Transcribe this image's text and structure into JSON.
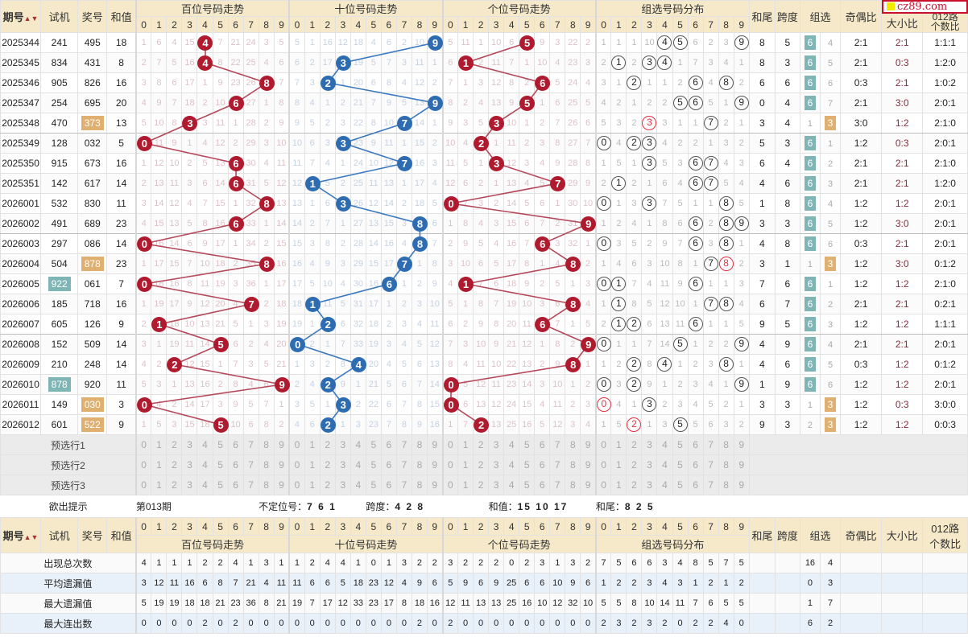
{
  "logo": "cz89.com",
  "headers": {
    "issue": "期号",
    "trial": "试机",
    "prize": "奖号",
    "sum": "和值",
    "hundreds": "百位号码走势",
    "tens": "十位号码走势",
    "units": "个位号码走势",
    "group": "组选号码分布",
    "tail": "和尾",
    "span": "跨度",
    "zuxuan": "组选",
    "oe": "奇偶比",
    "bs": "大小比",
    "r012a": "012路",
    "r012b": "个数比",
    "digits": [
      "0",
      "1",
      "2",
      "3",
      "4",
      "5",
      "6",
      "7",
      "8",
      "9"
    ]
  },
  "rows": [
    {
      "issue": "2025344",
      "trial": "241",
      "prize": "495",
      "sum": "18",
      "h": [
        1,
        6,
        4,
        15,
        4,
        7,
        21,
        24,
        3,
        5
      ],
      "t": [
        5,
        1,
        16,
        12,
        18,
        4,
        6,
        2,
        10,
        9
      ],
      "u": [
        5,
        11,
        1,
        10,
        6,
        5,
        9,
        3,
        22,
        2
      ],
      "g": [
        1,
        1,
        1,
        10,
        4,
        5,
        6,
        2,
        3,
        9
      ],
      "tail": "8",
      "span": "5",
      "type": "6",
      "z6": "6",
      "z3": "4",
      "oe": "2:1",
      "bs": "2:1",
      "r012": "1:1:1"
    },
    {
      "issue": "2025345",
      "trial": "834",
      "prize": "431",
      "sum": "8",
      "h": [
        2,
        7,
        5,
        16,
        4,
        8,
        22,
        25,
        4,
        6
      ],
      "t": [
        6,
        2,
        17,
        3,
        19,
        5,
        7,
        3,
        11,
        1
      ],
      "u": [
        6,
        1,
        2,
        11,
        7,
        1,
        10,
        4,
        23,
        3
      ],
      "g": [
        2,
        1,
        2,
        3,
        4,
        1,
        7,
        3,
        4,
        1
      ],
      "tail": "8",
      "span": "3",
      "type": "6",
      "z6": "6",
      "z3": "5",
      "oe": "2:1",
      "bs": "0:3",
      "r012": "1:2:0"
    },
    {
      "issue": "2025346",
      "trial": "905",
      "prize": "826",
      "sum": "16",
      "h": [
        3,
        8,
        6,
        17,
        1,
        9,
        23,
        26,
        8,
        7
      ],
      "t": [
        7,
        3,
        2,
        1,
        20,
        6,
        8,
        4,
        12,
        2
      ],
      "u": [
        7,
        1,
        3,
        12,
        8,
        2,
        6,
        5,
        24,
        4
      ],
      "g": [
        3,
        1,
        2,
        1,
        1,
        2,
        6,
        4,
        8,
        2
      ],
      "tail": "6",
      "span": "6",
      "type": "6",
      "z6": "6",
      "z3": "6",
      "oe": "0:3",
      "bs": "2:1",
      "r012": "1:0:2"
    },
    {
      "issue": "2025347",
      "trial": "254",
      "prize": "695",
      "sum": "20",
      "h": [
        4,
        9,
        7,
        18,
        2,
        10,
        6,
        27,
        1,
        8
      ],
      "t": [
        8,
        4,
        1,
        2,
        21,
        7,
        9,
        5,
        13,
        9
      ],
      "u": [
        8,
        2,
        4,
        13,
        9,
        5,
        1,
        6,
        25,
        5
      ],
      "g": [
        4,
        2,
        1,
        2,
        2,
        5,
        6,
        5,
        1,
        9
      ],
      "tail": "0",
      "span": "4",
      "type": "6",
      "z6": "6",
      "z3": "7",
      "oe": "2:1",
      "bs": "3:0",
      "r012": "2:0:1"
    },
    {
      "issue": "2025348",
      "trial": "470",
      "prize": "373",
      "prize_hl": true,
      "sum": "13",
      "h": [
        5,
        10,
        8,
        3,
        3,
        11,
        1,
        28,
        2,
        9
      ],
      "t": [
        9,
        5,
        2,
        3,
        22,
        8,
        10,
        7,
        14,
        1
      ],
      "u": [
        9,
        3,
        5,
        3,
        10,
        1,
        2,
        7,
        26,
        6
      ],
      "g": [
        5,
        3,
        2,
        3,
        3,
        1,
        1,
        7,
        2,
        1
      ],
      "tail": "3",
      "span": "4",
      "type": "3",
      "z6": "1",
      "z3": "3",
      "oe": "3:0",
      "bs": "1:2",
      "r012": "2:1:0"
    },
    {
      "issue": "2025349",
      "trial": "128",
      "prize": "032",
      "sum": "5",
      "h": [
        0,
        11,
        9,
        1,
        4,
        12,
        2,
        29,
        3,
        10
      ],
      "t": [
        10,
        6,
        3,
        3,
        23,
        9,
        11,
        1,
        15,
        2
      ],
      "u": [
        10,
        4,
        2,
        1,
        11,
        2,
        3,
        8,
        27,
        7
      ],
      "g": [
        0,
        4,
        2,
        3,
        4,
        2,
        2,
        1,
        3,
        2
      ],
      "tail": "5",
      "span": "3",
      "type": "6",
      "z6": "6",
      "z3": "1",
      "oe": "1:2",
      "bs": "0:3",
      "r012": "2:0:1"
    },
    {
      "issue": "2025350",
      "trial": "915",
      "prize": "673",
      "sum": "16",
      "h": [
        1,
        12,
        10,
        2,
        5,
        13,
        6,
        30,
        4,
        11
      ],
      "t": [
        11,
        7,
        4,
        1,
        24,
        10,
        12,
        7,
        16,
        3
      ],
      "u": [
        11,
        5,
        1,
        3,
        12,
        3,
        4,
        9,
        28,
        8
      ],
      "g": [
        1,
        5,
        1,
        3,
        5,
        3,
        6,
        7,
        4,
        3
      ],
      "tail": "6",
      "span": "4",
      "type": "6",
      "z6": "6",
      "z3": "2",
      "oe": "2:1",
      "bs": "2:1",
      "r012": "2:1:0"
    },
    {
      "issue": "2025351",
      "trial": "142",
      "prize": "617",
      "sum": "14",
      "h": [
        2,
        13,
        11,
        3,
        6,
        14,
        6,
        31,
        5,
        12
      ],
      "t": [
        12,
        1,
        5,
        2,
        25,
        11,
        13,
        1,
        17,
        4
      ],
      "u": [
        12,
        6,
        2,
        1,
        13,
        4,
        5,
        7,
        29,
        9
      ],
      "g": [
        2,
        1,
        2,
        1,
        6,
        4,
        6,
        7,
        5,
        4
      ],
      "tail": "4",
      "span": "6",
      "type": "6",
      "z6": "6",
      "z3": "3",
      "oe": "2:1",
      "bs": "2:1",
      "r012": "1:2:0"
    },
    {
      "issue": "2026001",
      "trial": "532",
      "prize": "830",
      "sum": "11",
      "h": [
        3,
        14,
        12,
        4,
        7,
        15,
        1,
        32,
        8,
        13
      ],
      "t": [
        13,
        1,
        6,
        3,
        26,
        12,
        14,
        2,
        18,
        5
      ],
      "u": [
        0,
        7,
        3,
        2,
        14,
        5,
        6,
        1,
        30,
        10
      ],
      "g": [
        0,
        1,
        3,
        3,
        7,
        5,
        1,
        1,
        8,
        5
      ],
      "tail": "1",
      "span": "8",
      "type": "6",
      "z6": "6",
      "z3": "4",
      "oe": "1:2",
      "bs": "1:2",
      "r012": "2:0:1"
    },
    {
      "issue": "2026002",
      "trial": "491",
      "prize": "689",
      "sum": "23",
      "h": [
        4,
        15,
        13,
        5,
        8,
        16,
        6,
        33,
        1,
        14
      ],
      "t": [
        14,
        2,
        7,
        1,
        27,
        13,
        15,
        3,
        8,
        6
      ],
      "u": [
        1,
        8,
        4,
        3,
        15,
        6,
        7,
        2,
        31,
        9
      ],
      "g": [
        1,
        2,
        4,
        1,
        8,
        6,
        6,
        2,
        8,
        9
      ],
      "tail": "3",
      "span": "3",
      "type": "6",
      "z6": "6",
      "z3": "5",
      "oe": "1:2",
      "bs": "3:0",
      "r012": "2:0:1"
    },
    {
      "issue": "2026003",
      "trial": "297",
      "prize": "086",
      "sum": "14",
      "h": [
        0,
        16,
        14,
        6,
        9,
        17,
        1,
        34,
        2,
        15
      ],
      "t": [
        15,
        3,
        8,
        2,
        28,
        14,
        16,
        4,
        8,
        7
      ],
      "u": [
        2,
        9,
        5,
        4,
        16,
        7,
        6,
        3,
        32,
        1
      ],
      "g": [
        0,
        3,
        5,
        2,
        9,
        7,
        6,
        3,
        8,
        1
      ],
      "tail": "4",
      "span": "8",
      "type": "6",
      "z6": "6",
      "z3": "6",
      "oe": "0:3",
      "bs": "2:1",
      "r012": "2:0:1"
    },
    {
      "issue": "2026004",
      "trial": "504",
      "prize": "878",
      "prize_hl": true,
      "sum": "23",
      "h": [
        1,
        17,
        15,
        7,
        10,
        18,
        2,
        35,
        8,
        16
      ],
      "t": [
        16,
        4,
        9,
        3,
        29,
        15,
        17,
        7,
        1,
        8
      ],
      "u": [
        3,
        10,
        6,
        5,
        17,
        8,
        1,
        4,
        8,
        2
      ],
      "g": [
        1,
        4,
        6,
        3,
        10,
        8,
        1,
        7,
        8,
        2
      ],
      "tail": "3",
      "span": "1",
      "type": "3",
      "z6": "1",
      "z3": "3",
      "oe": "1:2",
      "bs": "3:0",
      "r012": "0:1:2"
    },
    {
      "issue": "2026005",
      "trial": "922",
      "trial_hl": true,
      "prize": "061",
      "sum": "7",
      "h": [
        0,
        18,
        16,
        8,
        11,
        19,
        3,
        36,
        1,
        17
      ],
      "t": [
        17,
        5,
        10,
        4,
        30,
        16,
        6,
        1,
        2,
        9
      ],
      "u": [
        4,
        1,
        7,
        6,
        18,
        9,
        2,
        5,
        1,
        3
      ],
      "g": [
        0,
        1,
        7,
        4,
        11,
        9,
        6,
        1,
        1,
        3
      ],
      "tail": "7",
      "span": "6",
      "type": "6",
      "z6": "6",
      "z3": "1",
      "oe": "1:2",
      "bs": "1:2",
      "r012": "2:1:0"
    },
    {
      "issue": "2026006",
      "trial": "185",
      "prize": "718",
      "sum": "16",
      "h": [
        1,
        19,
        17,
        9,
        12,
        20,
        4,
        7,
        2,
        18
      ],
      "t": [
        18,
        1,
        11,
        5,
        31,
        17,
        1,
        2,
        3,
        10
      ],
      "u": [
        5,
        1,
        8,
        7,
        19,
        10,
        3,
        6,
        8,
        4
      ],
      "g": [
        1,
        1,
        8,
        5,
        12,
        10,
        1,
        7,
        8,
        4
      ],
      "tail": "6",
      "span": "7",
      "type": "6",
      "z6": "6",
      "z3": "2",
      "oe": "2:1",
      "bs": "2:1",
      "r012": "0:2:1"
    },
    {
      "issue": "2026007",
      "trial": "605",
      "prize": "126",
      "sum": "9",
      "h": [
        2,
        1,
        18,
        10,
        13,
        21,
        5,
        1,
        3,
        19
      ],
      "t": [
        19,
        1,
        2,
        6,
        32,
        18,
        2,
        3,
        4,
        11
      ],
      "u": [
        6,
        2,
        9,
        8,
        20,
        11,
        6,
        7,
        1,
        5
      ],
      "g": [
        2,
        1,
        2,
        6,
        13,
        11,
        6,
        1,
        1,
        5
      ],
      "tail": "9",
      "span": "5",
      "type": "6",
      "z6": "6",
      "z3": "3",
      "oe": "1:2",
      "bs": "1:2",
      "r012": "1:1:1"
    },
    {
      "issue": "2026008",
      "trial": "152",
      "prize": "509",
      "sum": "14",
      "h": [
        3,
        1,
        19,
        11,
        14,
        5,
        6,
        2,
        4,
        20
      ],
      "t": [
        0,
        2,
        1,
        7,
        33,
        19,
        3,
        4,
        5,
        12
      ],
      "u": [
        7,
        3,
        10,
        9,
        21,
        12,
        1,
        8,
        2,
        9
      ],
      "g": [
        0,
        1,
        1,
        7,
        14,
        5,
        1,
        2,
        2,
        9
      ],
      "tail": "4",
      "span": "9",
      "type": "6",
      "z6": "6",
      "z3": "4",
      "oe": "2:1",
      "bs": "2:1",
      "r012": "2:0:1"
    },
    {
      "issue": "2026009",
      "trial": "210",
      "prize": "248",
      "sum": "14",
      "h": [
        4,
        2,
        2,
        12,
        15,
        1,
        7,
        3,
        5,
        21
      ],
      "t": [
        1,
        3,
        2,
        8,
        4,
        20,
        4,
        5,
        6,
        13
      ],
      "u": [
        8,
        4,
        11,
        10,
        22,
        13,
        2,
        9,
        8,
        1
      ],
      "g": [
        1,
        2,
        2,
        8,
        4,
        1,
        2,
        3,
        8,
        1
      ],
      "tail": "4",
      "span": "6",
      "type": "6",
      "z6": "6",
      "z3": "5",
      "oe": "0:3",
      "bs": "1:2",
      "r012": "0:1:2"
    },
    {
      "issue": "2026010",
      "trial": "878",
      "trial_hl": true,
      "prize": "920",
      "sum": "11",
      "h": [
        5,
        3,
        1,
        13,
        16,
        2,
        8,
        4,
        6,
        9
      ],
      "t": [
        2,
        4,
        2,
        9,
        1,
        21,
        5,
        6,
        7,
        14
      ],
      "u": [
        0,
        5,
        12,
        11,
        23,
        14,
        3,
        10,
        1,
        2
      ],
      "g": [
        0,
        3,
        2,
        9,
        1,
        2,
        3,
        4,
        1,
        9
      ],
      "tail": "1",
      "span": "9",
      "type": "6",
      "z6": "6",
      "z3": "6",
      "oe": "1:2",
      "bs": "1:2",
      "r012": "2:0:1"
    },
    {
      "issue": "2026011",
      "trial": "149",
      "prize": "030",
      "prize_hl": true,
      "sum": "3",
      "h": [
        0,
        4,
        2,
        14,
        17,
        3,
        9,
        5,
        7,
        1
      ],
      "t": [
        3,
        5,
        1,
        3,
        2,
        22,
        6,
        7,
        8,
        15
      ],
      "u": [
        0,
        6,
        13,
        12,
        24,
        15,
        4,
        11,
        2,
        3
      ],
      "g": [
        0,
        4,
        1,
        3,
        2,
        3,
        4,
        5,
        2,
        1
      ],
      "tail": "3",
      "span": "3",
      "type": "3",
      "z6": "1",
      "z3": "3",
      "oe": "1:2",
      "bs": "0:3",
      "r012": "3:0:0"
    },
    {
      "issue": "2026012",
      "trial": "601",
      "prize": "522",
      "prize_hl": true,
      "sum": "9",
      "h": [
        1,
        5,
        3,
        15,
        18,
        5,
        10,
        6,
        8,
        2
      ],
      "t": [
        4,
        6,
        2,
        1,
        3,
        23,
        7,
        8,
        9,
        16
      ],
      "u": [
        1,
        7,
        2,
        13,
        25,
        16,
        5,
        12,
        3,
        4
      ],
      "g": [
        1,
        5,
        2,
        1,
        3,
        5,
        5,
        6,
        3,
        2
      ],
      "tail": "9",
      "span": "3",
      "type": "3",
      "z6": "2",
      "z3": "3",
      "oe": "1:2",
      "bs": "1:2",
      "r012": "0:0:3"
    }
  ],
  "preselect": [
    "预选行1",
    "预选行2",
    "预选行3"
  ],
  "hint": {
    "label": "欲出提示",
    "period": "第013期",
    "unfixed_label": "不定位号：",
    "unfixed": "7 6 1",
    "span_label": "跨度：",
    "span": "4 2 8",
    "sum_label": "和值：",
    "sum": "15 10 17",
    "tail_label": "和尾：",
    "tail": "8 2 5"
  },
  "stats": [
    {
      "label": "出现总次数",
      "h": [
        4,
        1,
        1,
        1,
        2,
        2,
        4,
        1,
        3,
        1
      ],
      "t": [
        1,
        2,
        4,
        4,
        1,
        0,
        1,
        3,
        2,
        2
      ],
      "u": [
        3,
        2,
        2,
        2,
        0,
        2,
        3,
        1,
        3,
        2
      ],
      "g": [
        7,
        5,
        6,
        6,
        3,
        4,
        8,
        5,
        7,
        5
      ],
      "z": [
        "16",
        "4"
      ]
    },
    {
      "label": "平均遗漏值",
      "h": [
        3,
        12,
        11,
        16,
        6,
        8,
        7,
        21,
        4,
        11
      ],
      "t": [
        11,
        6,
        6,
        5,
        18,
        23,
        12,
        4,
        9,
        6
      ],
      "u": [
        5,
        9,
        6,
        9,
        25,
        6,
        6,
        10,
        9,
        6
      ],
      "g": [
        1,
        2,
        2,
        3,
        4,
        3,
        1,
        2,
        1,
        2
      ],
      "z": [
        "0",
        "3"
      ]
    },
    {
      "label": "最大遗漏值",
      "h": [
        5,
        19,
        19,
        18,
        18,
        21,
        23,
        36,
        8,
        21
      ],
      "t": [
        19,
        7,
        17,
        12,
        33,
        23,
        17,
        8,
        18,
        16
      ],
      "u": [
        12,
        11,
        13,
        13,
        25,
        16,
        10,
        12,
        32,
        10
      ],
      "g": [
        5,
        5,
        8,
        10,
        14,
        11,
        7,
        6,
        5,
        5
      ],
      "z": [
        "1",
        "7"
      ]
    },
    {
      "label": "最大连出数",
      "h": [
        0,
        0,
        0,
        0,
        2,
        0,
        2,
        0,
        0,
        0
      ],
      "t": [
        0,
        0,
        0,
        0,
        0,
        0,
        0,
        0,
        2,
        0
      ],
      "u": [
        2,
        0,
        0,
        0,
        0,
        0,
        0,
        0,
        0,
        0
      ],
      "g": [
        2,
        3,
        2,
        3,
        2,
        0,
        2,
        2,
        4,
        0
      ],
      "z": [
        "6",
        "2"
      ]
    }
  ],
  "colors": {
    "hundreds_ball": "#b01a2e",
    "tens_ball": "#2e6cb2",
    "units_ball": "#b01a2e",
    "header_bg": "#f5e9c9",
    "zu6": "#7fb5b5",
    "zu3": "#e0b070"
  }
}
